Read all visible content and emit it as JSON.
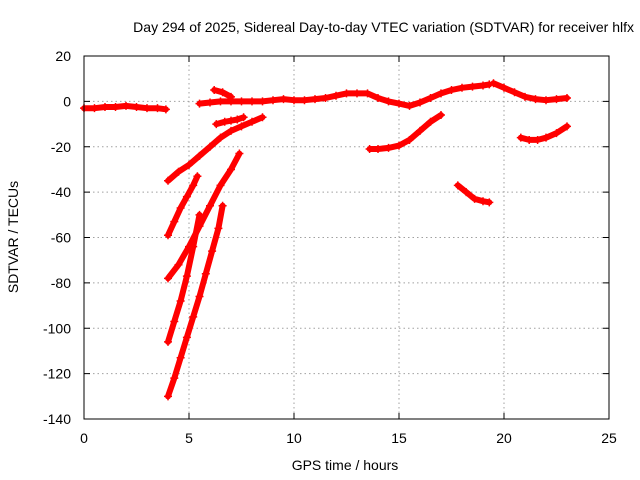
{
  "chart_data": {
    "type": "scatter",
    "title": "Day 294 of 2025, Sidereal Day-to-day VTEC variation (SDTVAR) for receiver hlfx",
    "xlabel": "GPS time / hours",
    "ylabel": "SDTVAR / TECUs",
    "xlim": [
      0,
      25
    ],
    "ylim": [
      -140,
      20
    ],
    "xticks": [
      0,
      5,
      10,
      15,
      20,
      25
    ],
    "yticks": [
      -140,
      -120,
      -100,
      -80,
      -60,
      -40,
      -20,
      0,
      20
    ],
    "grid": true,
    "marker": "plus",
    "color": "#ff0000",
    "series": [
      {
        "x": [
          0,
          0.5,
          1.0,
          1.5,
          2.0,
          2.5,
          3.0,
          3.5,
          3.9
        ],
        "y": [
          -3,
          -3,
          -2.5,
          -2.5,
          -2,
          -2.5,
          -3,
          -3,
          -3.5
        ]
      },
      {
        "x": [
          4.0,
          4.5,
          5.0,
          5.5,
          6.0,
          6.5,
          7.0,
          7.5,
          8.0,
          8.5
        ],
        "y": [
          -35,
          -31,
          -28,
          -24,
          -20,
          -16,
          -13,
          -11,
          -9,
          -7
        ]
      },
      {
        "x": [
          4.0,
          4.3,
          4.6,
          4.9,
          5.2,
          5.4
        ],
        "y": [
          -59,
          -53,
          -47,
          -42,
          -37,
          -33
        ]
      },
      {
        "x": [
          4.0,
          4.5,
          5.0,
          5.5,
          6.0,
          6.5,
          7.0,
          7.4
        ],
        "y": [
          -78,
          -72,
          -64,
          -55,
          -46,
          -37,
          -30,
          -23
        ]
      },
      {
        "x": [
          4.0,
          4.3,
          4.6,
          4.9,
          5.2,
          5.5
        ],
        "y": [
          -106,
          -97,
          -88,
          -77,
          -64,
          -50
        ]
      },
      {
        "x": [
          4.0,
          4.3,
          4.6,
          4.9,
          5.2,
          5.5,
          5.8,
          6.1,
          6.4,
          6.6
        ],
        "y": [
          -130,
          -122,
          -113,
          -104,
          -95,
          -86,
          -76,
          -66,
          -56,
          -46
        ]
      },
      {
        "x": [
          6.3,
          6.7,
          7.0,
          7.3,
          7.6
        ],
        "y": [
          -10,
          -9,
          -8.5,
          -8,
          -7
        ]
      },
      {
        "x": [
          5.5,
          6.0,
          6.5,
          7.0,
          7.5,
          8.0,
          8.5,
          9.0,
          9.5,
          10.0,
          10.5,
          11.0,
          11.5,
          12.0,
          12.5,
          13.0,
          13.5,
          14.0,
          14.5,
          15.0,
          15.5,
          16.0,
          16.5,
          17.0,
          17.5,
          18.0,
          18.5,
          19.0,
          19.3
        ],
        "y": [
          -1,
          -0.5,
          0,
          0,
          0,
          0,
          0,
          0.5,
          1,
          0.5,
          0.5,
          1,
          1.5,
          2.5,
          3.5,
          3.5,
          3.5,
          1.5,
          0,
          -1,
          -2,
          -0.5,
          1.5,
          3.5,
          5,
          6,
          6.5,
          7,
          7.5
        ]
      },
      {
        "x": [
          6.2,
          6.6,
          7.0
        ],
        "y": [
          5,
          4,
          2
        ]
      },
      {
        "x": [
          13.6,
          14.0,
          14.5,
          15.0,
          15.5,
          16.0,
          16.5,
          17.0
        ],
        "y": [
          -21,
          -21,
          -20.5,
          -19.5,
          -17,
          -13,
          -9,
          -6
        ]
      },
      {
        "x": [
          17.8,
          18.2,
          18.6,
          19.0,
          19.3
        ],
        "y": [
          -37,
          -40,
          -43,
          -44,
          -44.5
        ]
      },
      {
        "x": [
          19.5,
          20.0,
          20.5,
          21.0,
          21.5,
          22.0,
          22.5,
          23.0
        ],
        "y": [
          8,
          6,
          4,
          2,
          1,
          0.5,
          1,
          1.5
        ]
      },
      {
        "x": [
          20.8,
          21.2,
          21.6,
          22.0,
          22.5,
          23.0
        ],
        "y": [
          -16,
          -17,
          -17,
          -16,
          -14,
          -11
        ]
      }
    ]
  }
}
